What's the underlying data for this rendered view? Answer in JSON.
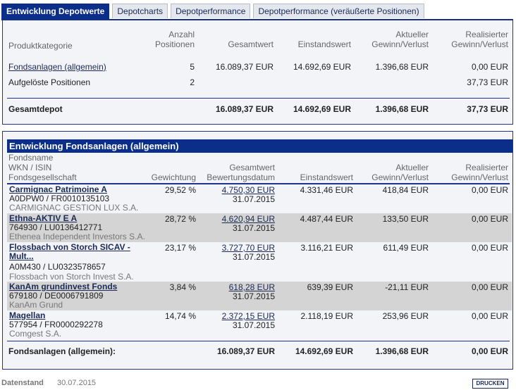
{
  "tabs": [
    {
      "label": "Entwicklung Depotwerte",
      "active": true
    },
    {
      "label": "Depotcharts",
      "active": false
    },
    {
      "label": "Depotperformance",
      "active": false
    },
    {
      "label": "Depotperformance (veräußerte Positionen)",
      "active": false
    }
  ],
  "overview": {
    "headers": {
      "category": "Produktkategorie",
      "count_1": "Anzahl",
      "count_2": "Positionen",
      "total": "Gesamtwert",
      "cost": "Einstandswert",
      "pl_1": "Aktueller",
      "pl_2": "Gewinn/Verlust",
      "realized_1": "Realisierter",
      "realized_2": "Gewinn/Verlust"
    },
    "rows": [
      {
        "category": "Fondsanlagen (allgemein)",
        "count": "5",
        "total": "16.089,37 EUR",
        "cost": "14.692,69 EUR",
        "pl": "1.396,68 EUR",
        "realized": "0,00 EUR"
      },
      {
        "category": "Aufgelöste Positionen",
        "count": "2",
        "total": "",
        "cost": "",
        "pl": "",
        "realized": "37,73 EUR"
      }
    ],
    "total_row": {
      "label": "Gesamtdepot",
      "total": "16.089,37 EUR",
      "cost": "14.692,69 EUR",
      "pl": "1.396,68 EUR",
      "realized": "37,73 EUR"
    }
  },
  "funds": {
    "title": "Entwicklung Fondsanlagen (allgemein)",
    "headers": {
      "name": "Fondsname",
      "wkn": "WKN / ISIN",
      "company": "Fondsgesellschaft",
      "weight": "Gewichtung",
      "total_1": "Gesamtwert",
      "total_2": "Bewertungsdatum",
      "cost": "Einstandswert",
      "pl_1": "Aktueller",
      "pl_2": "Gewinn/Verlust",
      "realized_1": "Realisierter",
      "realized_2": "Gewinn/Verlust"
    },
    "rows": [
      {
        "name_1": "Carmignac Patrimoine A",
        "name_2": "",
        "wkn": "A0DPW0 /  FR0010135103",
        "company": "CARMIGNAC GESTION LUX S.A.",
        "weight": "29,52 %",
        "total": "4.750,30 EUR",
        "date": "31.07.2015",
        "cost": "4.331,46 EUR",
        "pl": "418,84 EUR",
        "realized": "0,00 EUR"
      },
      {
        "name_1": "Ethna-AKTIV E A",
        "name_2": "",
        "wkn": "764930 /  LU0136412771",
        "company": "Ethenea Independent Investors S.A.",
        "weight": "28,72 %",
        "total": "4.620,94 EUR",
        "date": "31.07.2015",
        "cost": "4.487,44 EUR",
        "pl": "133,50 EUR",
        "realized": "0,00 EUR"
      },
      {
        "name_1": "Flossbach von Storch SICAV -",
        "name_2": "Mult...",
        "wkn": "A0M430 /  LU0323578657",
        "company": "Flossbach von Storch Invest S.A.",
        "weight": "23,17 %",
        "total": "3.727,70 EUR",
        "date": "31.07.2015",
        "cost": "3.116,21 EUR",
        "pl": "611,49 EUR",
        "realized": "0,00 EUR"
      },
      {
        "name_1": "KanAm grundinvest Fonds",
        "name_2": "",
        "wkn": "679180 /  DE0006791809",
        "company": "KanAm Grund",
        "weight": "3,84 %",
        "total": "618,28 EUR",
        "date": "31.07.2015",
        "cost": "639,39 EUR",
        "pl": "-21,11 EUR",
        "realized": "0,00 EUR"
      },
      {
        "name_1": "Magellan",
        "name_2": "",
        "wkn": "577954 /  FR0000292278",
        "company": "Comgest S.A.",
        "weight": "14,74 %",
        "total": "2.372,15 EUR",
        "date": "31.07.2015",
        "cost": "2.118,19 EUR",
        "pl": "253,96 EUR",
        "realized": "0,00 EUR"
      }
    ],
    "total_row": {
      "label": "Fondsanlagen (allgemein):",
      "total": "16.089,37 EUR",
      "cost": "14.692,69 EUR",
      "pl": "1.396,68 EUR",
      "realized": "0,00 EUR"
    }
  },
  "footer": {
    "label": "Datenstand",
    "date": "30.07.2015",
    "print_label": "DRUCKEN"
  }
}
